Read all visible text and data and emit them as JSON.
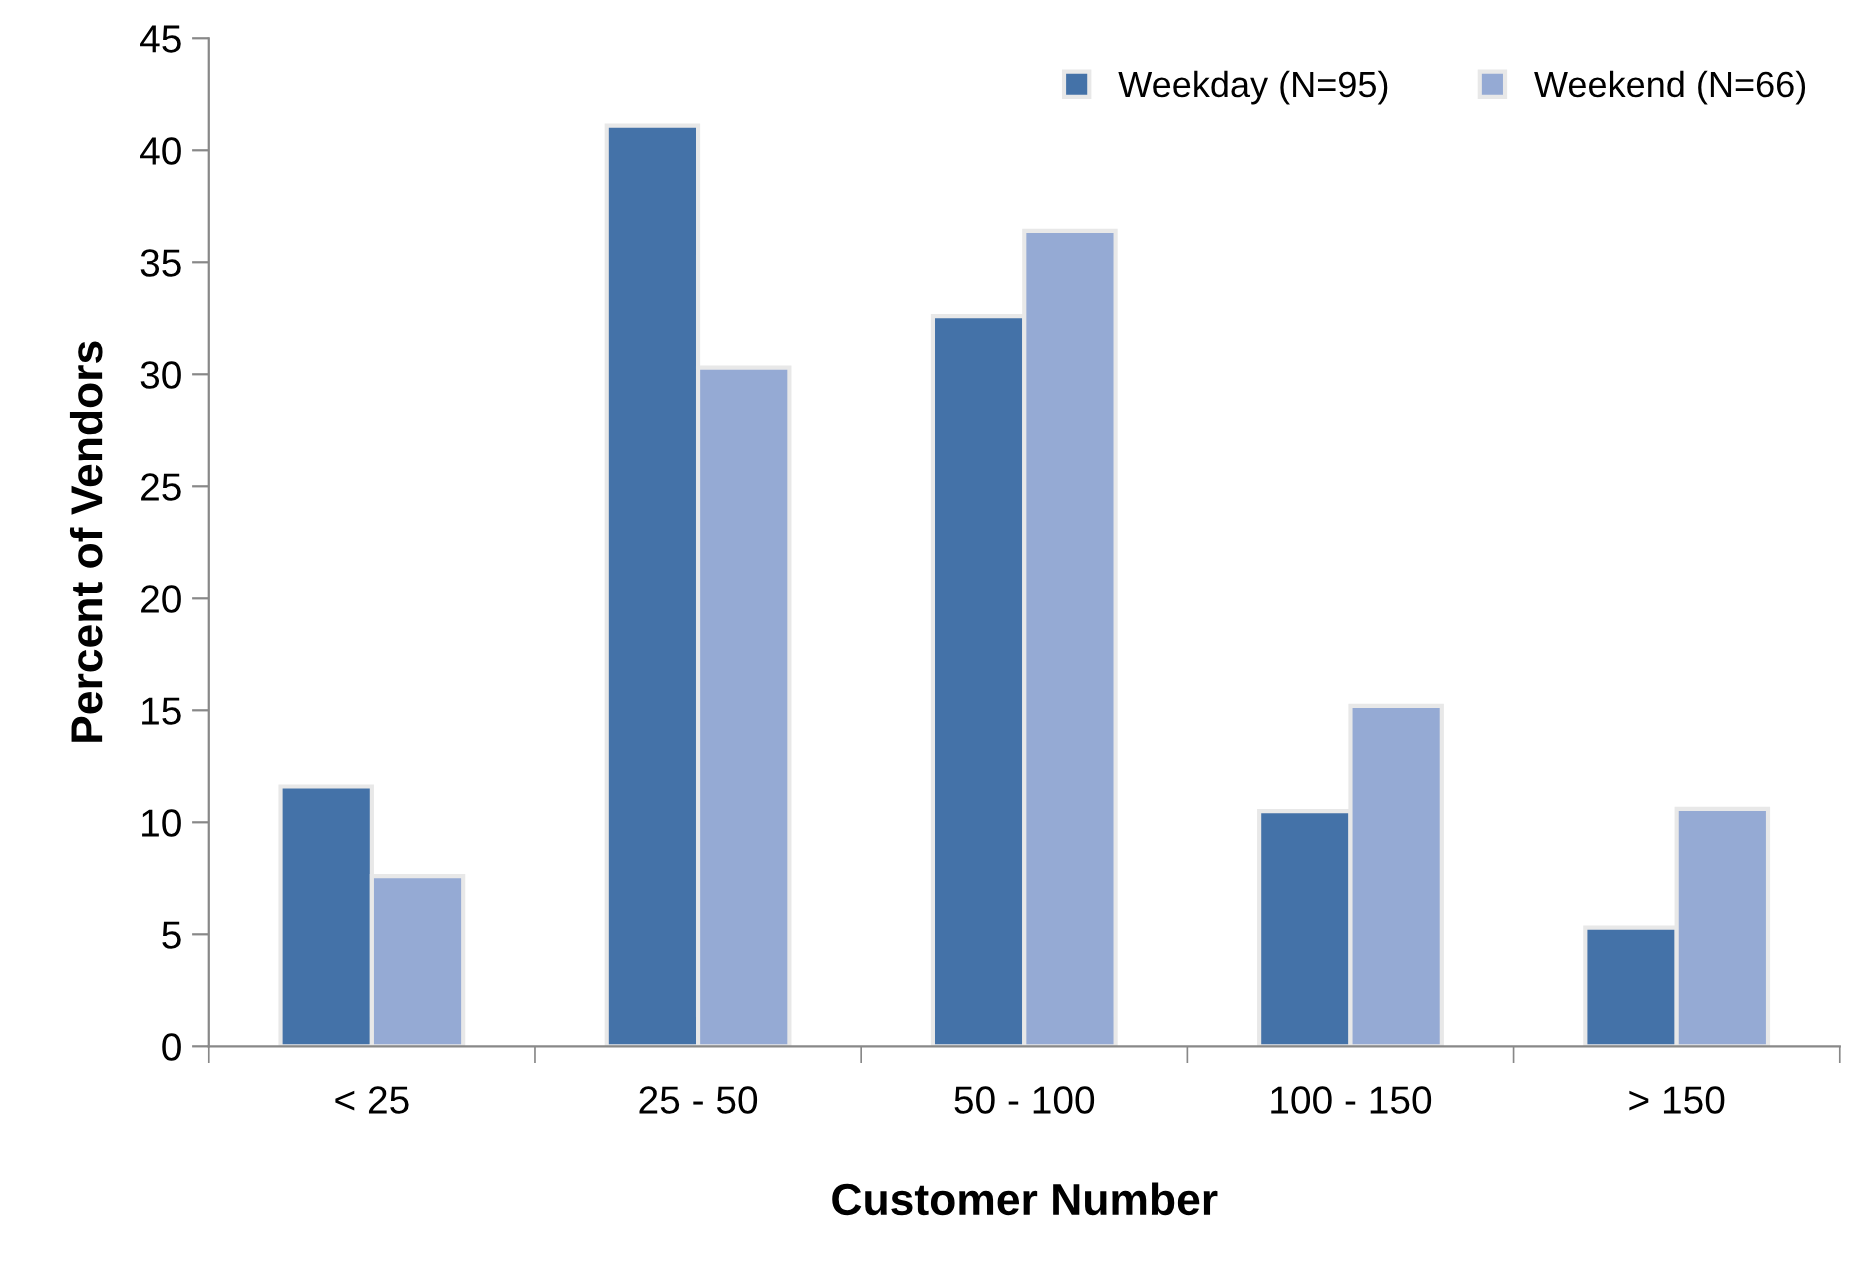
{
  "chart_data": {
    "type": "bar",
    "xlabel": "Customer Number",
    "ylabel": "Percent of Vendors",
    "categories": [
      "< 25",
      "25 - 50",
      "50 - 100",
      "100 - 150",
      "> 150"
    ],
    "series": [
      {
        "name": "Weekday (N=95)",
        "color": "#4472a8",
        "values": [
          11.6,
          41.1,
          32.6,
          10.5,
          5.3
        ]
      },
      {
        "name": "Weekend (N=66)",
        "color": "#95aad4",
        "values": [
          7.6,
          30.3,
          36.4,
          15.2,
          10.6
        ]
      }
    ],
    "ylim": [
      0,
      45
    ],
    "yticks": [
      0,
      5,
      10,
      15,
      20,
      25,
      30,
      35,
      40,
      45
    ],
    "grid": false,
    "legend": "top right"
  }
}
